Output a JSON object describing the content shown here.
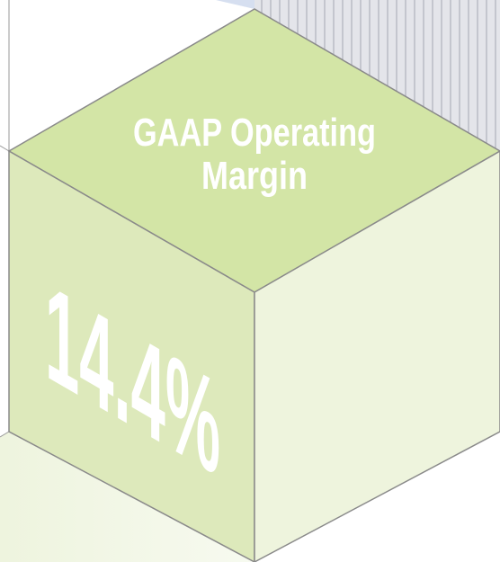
{
  "graphic": {
    "title_lines": [
      "GAAP Operating",
      "Margin"
    ],
    "value": "14.4%"
  }
}
